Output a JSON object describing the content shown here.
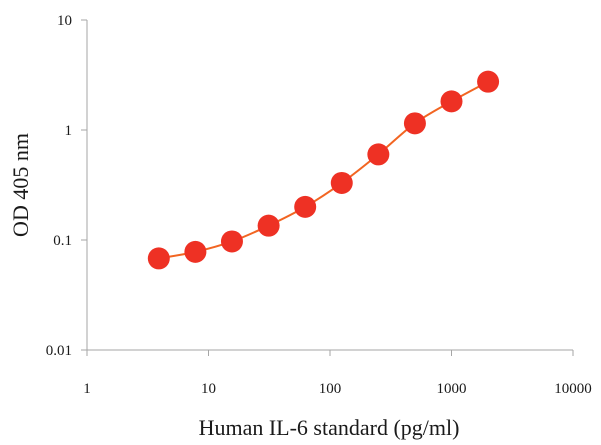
{
  "chart_data": {
    "type": "scatter",
    "title": "",
    "xlabel": "Human IL-6 standard (pg/ml)",
    "ylabel": "OD 405 nm",
    "x_scale": "log",
    "y_scale": "log",
    "xlim": [
      1,
      10000
    ],
    "ylim": [
      0.01,
      10
    ],
    "x_ticks": [
      1,
      10,
      100,
      1000,
      10000
    ],
    "x_tick_labels": [
      "1",
      "10",
      "100",
      "1000",
      "10000"
    ],
    "y_ticks": [
      0.01,
      0.1,
      1,
      10
    ],
    "y_tick_labels": [
      "0.01",
      "0.1",
      "1",
      "10"
    ],
    "grid": false,
    "legend": "none",
    "series": [
      {
        "x": [
          3.9,
          7.8,
          15.6,
          31.25,
          62.5,
          125,
          250,
          500,
          1000,
          2000
        ],
        "y": [
          0.068,
          0.078,
          0.097,
          0.135,
          0.2,
          0.33,
          0.6,
          1.15,
          1.82,
          2.75
        ],
        "marker_color": "#ee3124",
        "line_color": "#f26522"
      }
    ]
  }
}
